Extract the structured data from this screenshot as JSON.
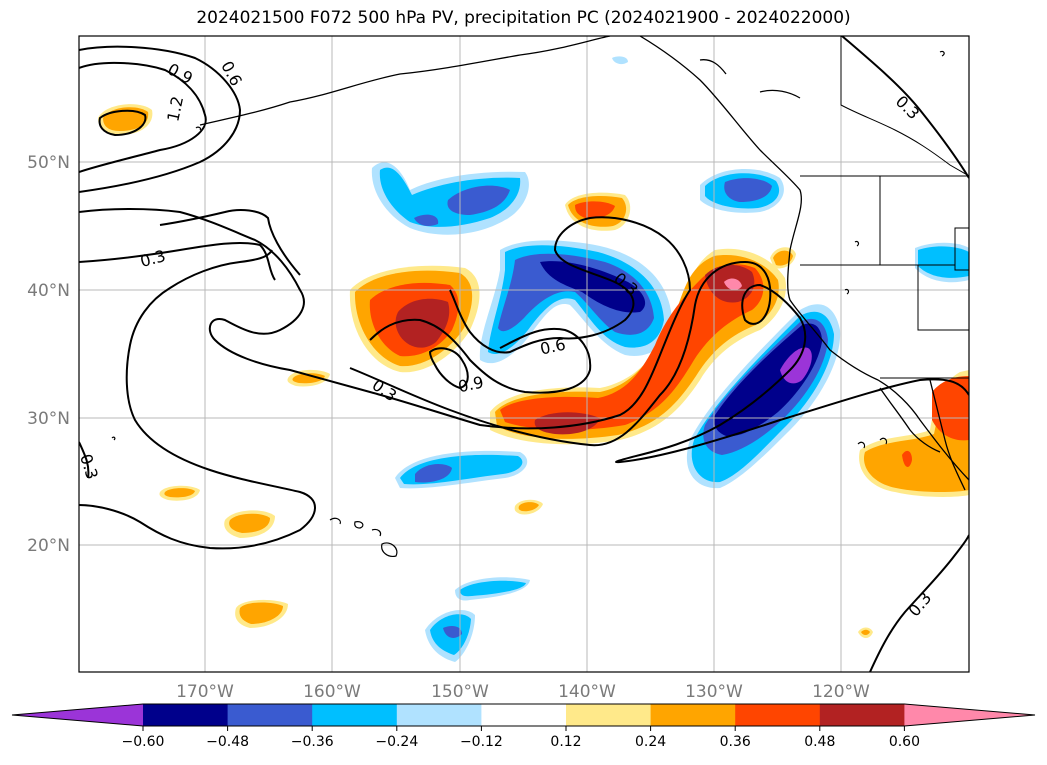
{
  "title": "2024021500 F072 500 hPa PV, precipitation PC (2024021900 - 2024022000)",
  "latitude_labels": [
    "50°N",
    "40°N",
    "30°N",
    "20°N"
  ],
  "longitude_labels": [
    "170°W",
    "160°W",
    "150°W",
    "140°W",
    "130°W",
    "120°W"
  ],
  "contour_labels": [
    "0.9",
    "0.6",
    "1.2",
    "0.3",
    "0.3",
    "0.6",
    "0.9",
    "0.3",
    "0.3",
    "0.3",
    "0.3"
  ],
  "colorbar": {
    "tick_labels": [
      "−0.60",
      "−0.48",
      "−0.36",
      "−0.24",
      "−0.12",
      "0.12",
      "0.24",
      "0.36",
      "0.48",
      "0.60"
    ],
    "colors": [
      "#9b34d8",
      "#00008b",
      "#3a5bd0",
      "#00bfff",
      "#b0e2ff",
      "#ffffff",
      "#ffe98a",
      "#ffa500",
      "#ff4500",
      "#b22222",
      "#ff88aa"
    ]
  },
  "fill_colors": {
    "c_n60": "#9b34d8",
    "c_n48": "#00008b",
    "c_n36": "#3a5bd0",
    "c_n24": "#00bfff",
    "c_n12": "#b0e2ff",
    "c_p12": "#ffe98a",
    "c_p24": "#ffa500",
    "c_p36": "#ff4500",
    "c_p48": "#b22222",
    "c_p60": "#ff88aa"
  }
}
